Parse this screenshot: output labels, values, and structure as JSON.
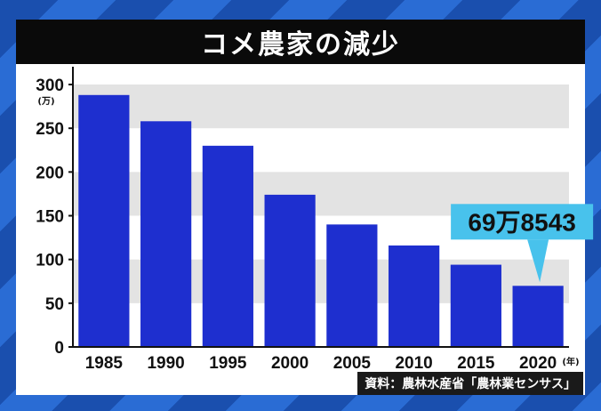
{
  "title": "コメ農家の減少",
  "source": "資料：農林水産省「農林業センサス」",
  "chart_data": {
    "type": "bar",
    "title": "コメ農家の減少",
    "y_unit": "(万)",
    "x_unit": "(年)",
    "categories": [
      "1985",
      "1990",
      "1995",
      "2000",
      "2005",
      "2010",
      "2015",
      "2020"
    ],
    "values": [
      288,
      258,
      230,
      174,
      140,
      116,
      94,
      69.8543
    ],
    "ylim": [
      0,
      300
    ],
    "yticks": [
      "0",
      "50",
      "100",
      "150",
      "200",
      "250",
      "300"
    ],
    "grid": "banded",
    "bar_color": "#1e2fcf",
    "callout": {
      "label": "69万8543",
      "category": "2020"
    }
  }
}
